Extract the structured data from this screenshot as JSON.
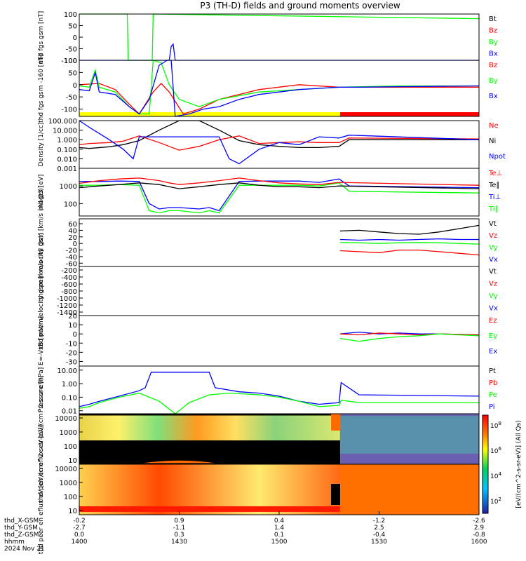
{
  "title": "P3 (TH-D) fields and ground moments overview",
  "colors": {
    "black": "#000000",
    "red": "#ff0000",
    "green": "#00ff00",
    "blue": "#0000ff",
    "yellow": "#ffff00",
    "spec_bg": "#000000"
  },
  "time_axis": {
    "ticks": [
      "1400",
      "1430",
      "1500",
      "1530",
      "1600"
    ],
    "rows": [
      {
        "label": "thd_X-GSM",
        "values": [
          "-0.2",
          "0.9",
          "0.4",
          "-1.2",
          "-2.6"
        ]
      },
      {
        "label": "thd_Y-GSM",
        "values": [
          "-2.7",
          "-1.1",
          "1.4",
          "2.5",
          "2.9"
        ]
      },
      {
        "label": "thd_Z-GSM",
        "values": [
          "0.0",
          "0.3",
          "0.1",
          "-0.4",
          "-0.8"
        ]
      },
      {
        "label": "hhmm",
        "values": [
          "1400",
          "1430",
          "1500",
          "1530",
          "1600"
        ]
      }
    ],
    "date": "2024 Nov 21"
  },
  "colorbar": {
    "ticks": [
      "10^8",
      "10^6",
      "10^4",
      "10^2"
    ],
    "label": "[eV/(cm^2-s-sr-eV)] (All Qs)"
  },
  "chart_data": [
    {
      "id": "fgs_gsm",
      "type": "line",
      "ylabel": "thd fgs gsm [nT]",
      "ylim": [
        -100,
        100
      ],
      "yticks": [
        "100",
        "50",
        "0",
        "-50",
        "-100"
      ],
      "legend": [
        "Bt",
        "Bz",
        "By",
        "Bx"
      ],
      "legend_colors": [
        "black",
        "red",
        "green",
        "blue"
      ],
      "series": [
        {
          "color": "green",
          "x": [
            1400,
            1424,
            1424.5,
            1436.5,
            1437,
            1600
          ],
          "y": [
            100,
            100,
            -100,
            -100,
            100,
            80
          ]
        },
        {
          "color": "blue",
          "x": [
            1400,
            1445,
            1446,
            1447,
            1448,
            1600
          ],
          "y": [
            -100,
            -100,
            -40,
            -30,
            -100,
            -100
          ]
        }
      ]
    },
    {
      "id": "fgs_gsm_zoom",
      "type": "line",
      "ylabel": "thd fgs gsm -160 [nT]",
      "ylim": [
        -130,
        100
      ],
      "yticks": [
        "100",
        "50",
        "0",
        "-50",
        "-100"
      ],
      "legend": [
        "Bz",
        "By",
        "Bx"
      ],
      "legend_colors": [
        "red",
        "green",
        "blue"
      ],
      "series": [
        {
          "color": "red",
          "x": [
            1400,
            1410,
            1418,
            1425,
            1430,
            1437,
            1441,
            1445,
            1452,
            1460,
            1470,
            1490,
            1510,
            1530,
            1560,
            1600
          ],
          "y": [
            0,
            5,
            -20,
            -80,
            -120,
            -30,
            5,
            -30,
            -120,
            -100,
            -60,
            -20,
            0,
            -10,
            -10,
            -10
          ]
        },
        {
          "color": "green",
          "x": [
            1400,
            1405,
            1408,
            1410,
            1418,
            1425,
            1430,
            1435,
            1437,
            1441,
            1445,
            1450,
            1460,
            1470,
            1490,
            1510,
            1530,
            1560,
            1600
          ],
          "y": [
            -5,
            -10,
            60,
            -10,
            -30,
            -90,
            -120,
            -120,
            100,
            90,
            0,
            -60,
            -90,
            -60,
            -30,
            -20,
            -10,
            -5,
            -5
          ]
        },
        {
          "color": "blue",
          "x": [
            1400,
            1405,
            1408,
            1410,
            1418,
            1425,
            1430,
            1435,
            1440,
            1444,
            1446,
            1448,
            1455,
            1462,
            1470,
            1480,
            1490,
            1500,
            1510,
            1520,
            1530,
            1540,
            1560,
            1600
          ],
          "y": [
            -20,
            -25,
            50,
            -30,
            -40,
            -90,
            -120,
            -60,
            80,
            100,
            100,
            -130,
            -120,
            -100,
            -90,
            -60,
            -40,
            -30,
            -20,
            -15,
            -10,
            -10,
            -8,
            -5
          ]
        }
      ],
      "bar": [
        {
          "from": 1400,
          "to": 1530.5,
          "color": "yellow"
        },
        {
          "from": 1530.5,
          "to": 1600,
          "color": "red"
        }
      ]
    },
    {
      "id": "density",
      "type": "line",
      "ylabel": "Density [1/cc]",
      "yscale": "log",
      "ylim": [
        0.001,
        100
      ],
      "yticks": [
        "100.000",
        "10.000",
        "1.000",
        "0.100",
        "0.010",
        "0.001"
      ],
      "legend": [
        "Ne",
        "Ni",
        "Npot"
      ],
      "legend_colors": [
        "red",
        "black",
        "blue"
      ],
      "series": [
        {
          "color": "black",
          "x": [
            1400,
            1405,
            1415,
            1422,
            1430,
            1440,
            1450,
            1460,
            1470,
            1480,
            1490,
            1500,
            1510,
            1520,
            1530,
            1535,
            1600
          ],
          "y": [
            0.15,
            0.12,
            0.18,
            0.3,
            0.8,
            10,
            100,
            100,
            10,
            0.8,
            0.3,
            0.2,
            0.15,
            0.15,
            0.2,
            1,
            1
          ]
        },
        {
          "color": "red",
          "x": [
            1400,
            1405,
            1415,
            1422,
            1430,
            1440,
            1450,
            1460,
            1470,
            1480,
            1490,
            1500,
            1510,
            1520,
            1530,
            1535,
            1600
          ],
          "y": [
            0.3,
            0.4,
            0.5,
            0.7,
            2.5,
            0.5,
            0.08,
            0.2,
            1,
            2.5,
            0.4,
            0.5,
            0.6,
            0.5,
            0.5,
            1.5,
            1.2
          ]
        },
        {
          "color": "blue",
          "x": [
            1400,
            1405,
            1415,
            1422,
            1427,
            1430,
            1440,
            1450,
            1460,
            1470,
            1475,
            1480,
            1490,
            1500,
            1510,
            1520,
            1530,
            1535,
            1600
          ],
          "y": [
            100,
            20,
            1,
            0.1,
            0.01,
            2,
            2,
            2,
            2,
            2,
            0.01,
            0.003,
            0.1,
            0.5,
            0.3,
            2,
            1.5,
            3,
            1
          ]
        }
      ]
    },
    {
      "id": "temperature",
      "type": "line",
      "ylabel": "magt3 [eV]",
      "yscale": "log",
      "ylim": [
        20,
        10000
      ],
      "yticks": [
        "1000",
        "100"
      ],
      "legend": [
        "Te⊥",
        "Te∥",
        "Ti⊥",
        "Ti∥"
      ],
      "legend_colors": [
        "red",
        "black",
        "blue",
        "green"
      ],
      "series": [
        {
          "color": "blue",
          "x": [
            1400,
            1410,
            1420,
            1430,
            1435,
            1440,
            1445,
            1450,
            1460,
            1465,
            1470,
            1480,
            1490,
            1500,
            1510,
            1520,
            1530,
            1535,
            1600
          ],
          "y": [
            1800,
            1800,
            1900,
            1800,
            100,
            50,
            60,
            60,
            50,
            60,
            40,
            1800,
            1900,
            1900,
            1900,
            1600,
            2500,
            1000,
            800
          ]
        },
        {
          "color": "green",
          "x": [
            1400,
            1410,
            1420,
            1430,
            1435,
            1440,
            1445,
            1450,
            1460,
            1465,
            1470,
            1480,
            1490,
            1500,
            1510,
            1520,
            1530,
            1535,
            1600
          ],
          "y": [
            1100,
            1100,
            1200,
            1100,
            40,
            30,
            40,
            40,
            30,
            40,
            30,
            1100,
            1100,
            1100,
            1100,
            1000,
            1500,
            500,
            400
          ]
        },
        {
          "color": "black",
          "x": [
            1400,
            1410,
            1420,
            1430,
            1440,
            1445,
            1450,
            1460,
            1470,
            1480,
            1490,
            1500,
            1510,
            1520,
            1530,
            1600
          ],
          "y": [
            800,
            1000,
            1200,
            1500,
            1200,
            900,
            700,
            900,
            1200,
            1500,
            1100,
            900,
            900,
            800,
            1000,
            700
          ]
        },
        {
          "color": "red",
          "x": [
            1400,
            1410,
            1420,
            1430,
            1440,
            1445,
            1450,
            1460,
            1470,
            1480,
            1490,
            1500,
            1510,
            1520,
            1530,
            1600
          ],
          "y": [
            1400,
            2000,
            2500,
            2800,
            2000,
            1500,
            1200,
            1500,
            2000,
            2800,
            2000,
            1500,
            1300,
            1200,
            1600,
            1100
          ]
        }
      ]
    },
    {
      "id": "peir_velocity",
      "type": "line",
      "ylabel": "thd peir velocity gsm [km/s (All Qs)]",
      "ylim": [
        -70,
        75
      ],
      "yticks": [
        "60",
        "40",
        "20",
        "0",
        "-20",
        "-40",
        "-60"
      ],
      "legend": [
        "Vt",
        "Vz",
        "Vy",
        "Vx"
      ],
      "legend_colors": [
        "black",
        "red",
        "green",
        "blue"
      ],
      "series": [
        {
          "color": "black",
          "x": [
            1530.5,
            1540,
            1550,
            1560,
            1570,
            1580,
            1590,
            1600
          ],
          "y": [
            38,
            40,
            35,
            30,
            28,
            35,
            45,
            55
          ]
        },
        {
          "color": "blue",
          "x": [
            1530.5,
            1540,
            1550,
            1560,
            1570,
            1580,
            1590,
            1600
          ],
          "y": [
            12,
            10,
            12,
            10,
            12,
            14,
            12,
            12
          ]
        },
        {
          "color": "green",
          "x": [
            1530.5,
            1540,
            1550,
            1560,
            1570,
            1580,
            1590,
            1600
          ],
          "y": [
            3,
            2,
            0,
            2,
            3,
            2,
            0,
            -2
          ]
        },
        {
          "color": "red",
          "x": [
            1530.5,
            1540,
            1550,
            1560,
            1570,
            1580,
            1590,
            1600
          ],
          "y": [
            -22,
            -25,
            -28,
            -20,
            -20,
            -25,
            -30,
            -35
          ]
        }
      ]
    },
    {
      "id": "peer_velocity",
      "type": "line",
      "ylabel": "thd peer velocity gsm [km/s (All Qs)]",
      "ylim": [
        -1500,
        -100
      ],
      "yticks": [
        "-200",
        "-400",
        "-600",
        "-800",
        "-1000",
        "-1200",
        "-1400"
      ],
      "legend": [
        "Vt",
        "Vz",
        "Vy",
        "Vx"
      ],
      "legend_colors": [
        "black",
        "red",
        "green",
        "blue"
      ],
      "series": []
    },
    {
      "id": "efield",
      "type": "line",
      "ylabel": "E=-VxB [mV/m]",
      "ylim": [
        -35,
        20
      ],
      "yticks": [
        "20",
        "10",
        "0",
        "-10",
        "-20",
        "-30"
      ],
      "legend": [
        "Ez",
        "Ey",
        "Ex"
      ],
      "legend_colors": [
        "red",
        "green",
        "blue"
      ],
      "series": [
        {
          "color": "blue",
          "x": [
            1530.5,
            1540,
            1550,
            1560,
            1570,
            1580,
            1600
          ],
          "y": [
            0,
            2,
            0,
            1,
            0,
            0,
            -1
          ]
        },
        {
          "color": "red",
          "x": [
            1530.5,
            1540,
            1550,
            1560,
            1570,
            1580,
            1600
          ],
          "y": [
            0,
            -1,
            1,
            0,
            -1,
            0,
            -1
          ]
        },
        {
          "color": "green",
          "x": [
            1530.5,
            1540,
            1550,
            1560,
            1570,
            1580,
            1600
          ],
          "y": [
            -5,
            -8,
            -5,
            -3,
            -2,
            0,
            -2
          ]
        }
      ]
    },
    {
      "id": "pressure",
      "type": "line",
      "ylabel": "Pressure [nPa]",
      "yscale": "log",
      "ylim": [
        0.006,
        20
      ],
      "yticks": [
        "10.00",
        "1.00",
        "0.10",
        "0.01"
      ],
      "legend": [
        "Pt",
        "Pb",
        "Pe",
        "Pi"
      ],
      "legend_colors": [
        "black",
        "red",
        "green",
        "blue"
      ],
      "series": [
        {
          "color": "blue",
          "x": [
            1400,
            1405,
            1410,
            1420,
            1430,
            1433,
            1436,
            1460,
            1465,
            1468,
            1480,
            1490,
            1500,
            1510,
            1520,
            1530,
            1531,
            1540,
            1600
          ],
          "y": [
            0.02,
            0.03,
            0.05,
            0.12,
            0.3,
            0.5,
            7,
            7,
            7,
            0.5,
            0.25,
            0.2,
            0.12,
            0.05,
            0.03,
            0.04,
            1.2,
            0.15,
            0.12
          ]
        },
        {
          "color": "green",
          "x": [
            1400,
            1405,
            1410,
            1420,
            1430,
            1440,
            1448,
            1455,
            1465,
            1475,
            1490,
            1500,
            1510,
            1520,
            1530,
            1531,
            1540,
            1600
          ],
          "y": [
            0.015,
            0.02,
            0.04,
            0.1,
            0.2,
            0.05,
            0.006,
            0.04,
            0.15,
            0.2,
            0.15,
            0.1,
            0.05,
            0.02,
            0.025,
            0.06,
            0.04,
            0.04
          ]
        }
      ]
    },
    {
      "id": "peir_spec",
      "type": "heatmap",
      "ylabel": "thd peir en eflux eV [eV/(cm^2-s-sr-eV)]",
      "yscale": "log",
      "ylim": [
        5,
        20000
      ],
      "yticks": [
        "10000",
        "1000",
        "100",
        "10"
      ]
    },
    {
      "id": "peer_spec",
      "type": "heatmap",
      "ylabel": "thd peer en eflux eV [eV/(cm^2-s-sr-eV)]",
      "yscale": "log",
      "ylim": [
        5,
        20000
      ],
      "yticks": [
        "10000",
        "1000",
        "100",
        "10"
      ]
    }
  ]
}
